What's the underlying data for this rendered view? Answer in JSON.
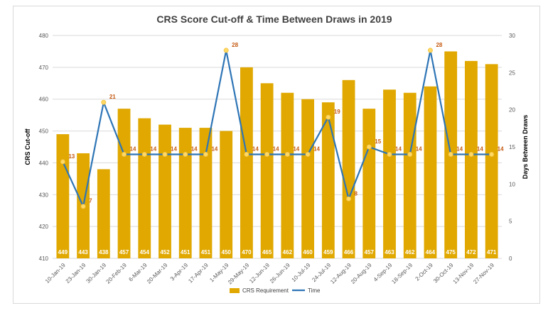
{
  "chart_data": {
    "type": "bar+line",
    "title": "CRS Score Cut-off & Time Between Draws in 2019",
    "ylabel": "CRS Cut-off",
    "y2label": "Days Between Draws",
    "ylim": [
      410,
      480
    ],
    "y2lim": [
      0,
      30
    ],
    "yticks": [
      "410",
      "420",
      "430",
      "440",
      "450",
      "460",
      "470",
      "480"
    ],
    "y2ticks": [
      "0",
      "5",
      "10",
      "15",
      "20",
      "25",
      "30"
    ],
    "categories": [
      "10-Jan-19",
      "23-Jan-19",
      "30-Jan-19",
      "20-Feb-19",
      "6-Mar-19",
      "20-Mar-19",
      "3-Apr-19",
      "17-Apr-19",
      "1-May-19",
      "29-May-19",
      "12-Jun-19",
      "26-Jun-19",
      "10-Jul-19",
      "24-Jul-19",
      "12-Aug-19",
      "20-Aug-19",
      "4-Sep-19",
      "18-Sep-19",
      "2-Oct-19",
      "30-Oct-19",
      "13-Nov-19",
      "27-Nov-19"
    ],
    "series": [
      {
        "name": "CRS Requirement",
        "type": "bar",
        "axis": "left",
        "color": "#e0a800",
        "values": [
          449,
          443,
          438,
          457,
          454,
          452,
          451,
          451,
          450,
          470,
          465,
          462,
          460,
          459,
          466,
          457,
          463,
          462,
          464,
          475,
          472,
          471
        ],
        "labels": [
          "449",
          "443",
          "438",
          "457",
          "454",
          "452",
          "451",
          "451",
          "450",
          "470",
          "465",
          "462",
          "460",
          "459",
          "466",
          "457",
          "463",
          "462",
          "464",
          "475",
          "472",
          "471"
        ]
      },
      {
        "name": "Time",
        "type": "line",
        "axis": "right",
        "color": "#2e75b6",
        "values": [
          13,
          7,
          21,
          14,
          14,
          14,
          14,
          14,
          28,
          14,
          14,
          14,
          14,
          19,
          8,
          15,
          14,
          14,
          28,
          14,
          14,
          14
        ],
        "labels": [
          "13",
          "7",
          "21",
          "14",
          "14",
          "14",
          "14",
          "14",
          "28",
          "14",
          "14",
          "14",
          "14",
          "19",
          "8",
          "15",
          "14",
          "14",
          "28",
          "14",
          "14",
          "14"
        ]
      }
    ],
    "legend": [
      "CRS Requirement",
      "Time"
    ],
    "legend_position": "bottom",
    "grid": true
  }
}
